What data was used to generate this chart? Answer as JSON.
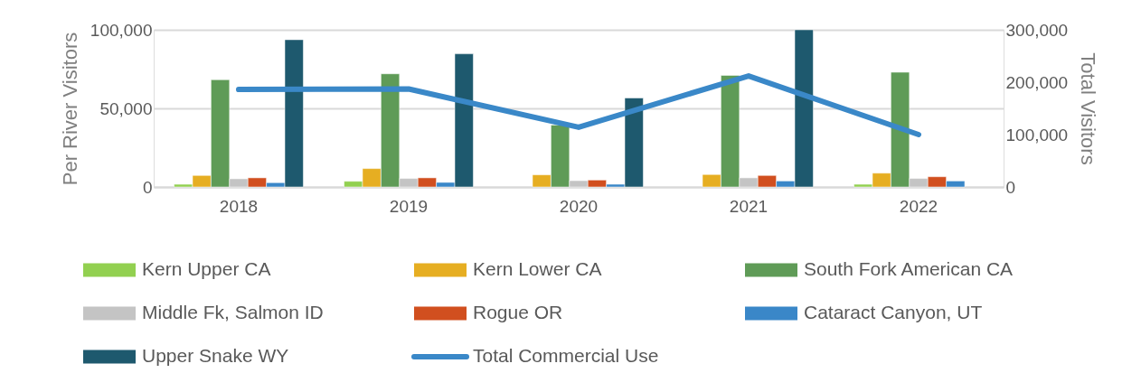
{
  "chart_data": {
    "type": "bar",
    "ylabel": "Per River Visitors",
    "y2label": "Total Visitors",
    "categories": [
      "2018",
      "2019",
      "2020",
      "2021",
      "2022"
    ],
    "series": [
      {
        "name": "Kern Upper CA",
        "color": "#92d050",
        "values": [
          1700,
          3600,
          null,
          null,
          1700
        ]
      },
      {
        "name": "Kern Lower CA",
        "color": "#e6ae22",
        "values": [
          7300,
          11700,
          7700,
          7900,
          8800
        ]
      },
      {
        "name": "South Fork American CA",
        "color": "#5f9b57",
        "values": [
          68200,
          72000,
          39400,
          71000,
          73000
        ]
      },
      {
        "name": "Middle Fk, Salmon ID",
        "color": "#c4c4c4",
        "values": [
          5200,
          5400,
          4000,
          5800,
          5400
        ]
      },
      {
        "name": "Rogue OR",
        "color": "#d14f1f",
        "values": [
          5800,
          5800,
          4400,
          7300,
          6500
        ]
      },
      {
        "name": "Cataract Canyon, UT",
        "color": "#3a87c8",
        "values": [
          2700,
          2900,
          1700,
          3800,
          3800
        ]
      },
      {
        "name": "Upper Snake WY",
        "color": "#1e596e",
        "values": [
          93700,
          84700,
          56600,
          100000,
          null
        ]
      },
      {
        "name": "Total Commercial Use",
        "color": "#3a88c8",
        "type": "line",
        "axis": "y2",
        "values": [
          186000,
          187000,
          114000,
          212000,
          100000
        ]
      }
    ],
    "ylim": [
      0,
      100000
    ],
    "yticks": [
      0,
      {
        "value": 50000,
        "label": "50,000"
      },
      {
        "value": 100000,
        "label": "100,000"
      }
    ],
    "y2lim": [
      0,
      300000
    ],
    "y2ticks": [
      0,
      {
        "value": 100000,
        "label": "100,000"
      },
      {
        "value": 200000,
        "label": "200,000"
      },
      {
        "value": 300000,
        "label": "300,000"
      }
    ],
    "grid": "y",
    "legend": "bottom"
  }
}
